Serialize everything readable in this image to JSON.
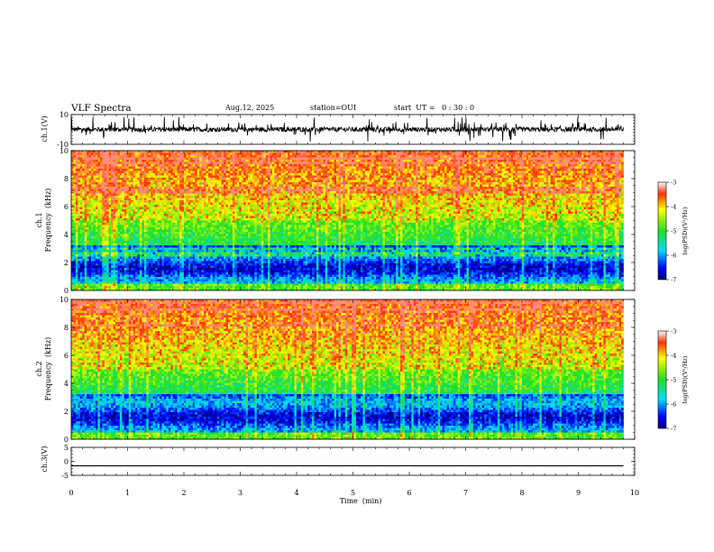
{
  "header": {
    "title": "VLF Spectra",
    "date": "Aug.12, 2025",
    "station": "station=OUI",
    "start_ut": "start  UT =   0 : 30 : 0"
  },
  "chart_data": [
    {
      "type": "line",
      "name": "ch1-waveform",
      "ylabel": "ch.1(V)",
      "ylim": [
        -10,
        10
      ],
      "yticks": [
        "10",
        "-10"
      ],
      "xlim": [
        0,
        10
      ],
      "baseline": 0,
      "description_series": "noisy waveform with spikes up to about ±9 V"
    },
    {
      "type": "heatmap",
      "name": "ch1-spectrogram",
      "ylabel_line1": "ch.1",
      "ylabel_line2": "Frequency  (kHz)",
      "ylim": [
        0,
        10
      ],
      "yticks": [
        "0",
        "2",
        "4",
        "6",
        "8",
        "10"
      ],
      "xlim": [
        0,
        10
      ],
      "colorbar": {
        "label": "log(PSD)(V²/Hz)",
        "range": [
          -7,
          -3
        ],
        "ticks": [
          "-3",
          "-4",
          "-5",
          "-6",
          "-7"
        ]
      }
    },
    {
      "type": "heatmap",
      "name": "ch2-spectrogram",
      "ylabel_line1": "ch.2",
      "ylabel_line2": "Frequency  (kHz)",
      "ylim": [
        0,
        10
      ],
      "yticks": [
        "0",
        "2",
        "4",
        "6",
        "8",
        "10"
      ],
      "xlim": [
        0,
        10
      ],
      "colorbar": {
        "label": "log(PSD)(V²/Hz)",
        "range": [
          -7,
          -3
        ],
        "ticks": [
          "-3",
          "-4",
          "-5",
          "-6",
          "-7"
        ]
      }
    },
    {
      "type": "line",
      "name": "ch3-waveform",
      "ylabel": "ch.3(V)",
      "ylim": [
        -5,
        5
      ],
      "yticks": [
        "5",
        "0",
        "-5"
      ],
      "xlim": [
        0,
        10
      ],
      "flat_value": -1.6
    }
  ],
  "xaxis": {
    "label": "Time  (min)",
    "ticks": [
      "0",
      "1",
      "2",
      "3",
      "4",
      "5",
      "6",
      "7",
      "8",
      "9",
      "10"
    ],
    "data_end": 9.8
  }
}
